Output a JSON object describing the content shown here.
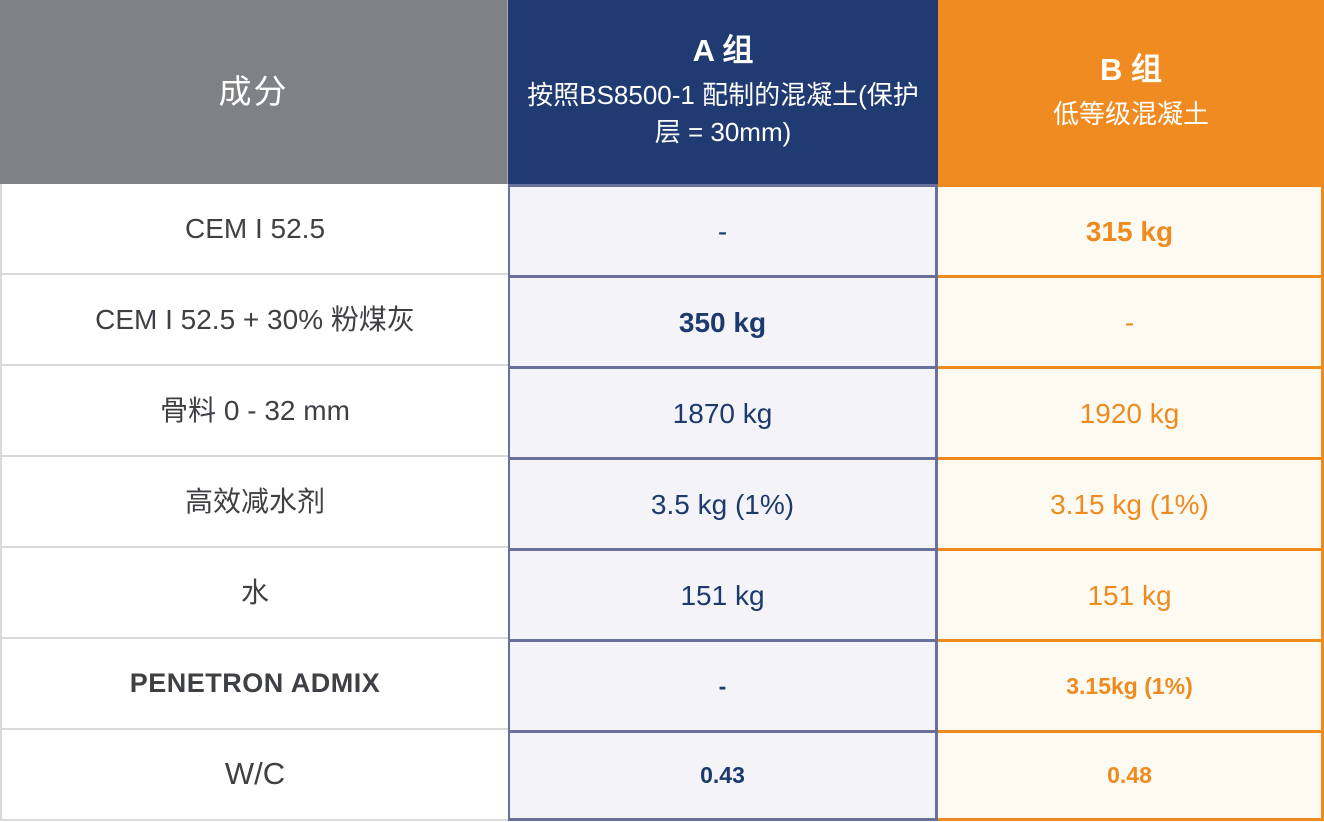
{
  "chart_data": {
    "type": "table",
    "header": {
      "ingredient_label": "成分",
      "group_a": {
        "title": "A 组",
        "subtitle": "按照BS8500-1 配制的混凝土(保护层 = 30mm)"
      },
      "group_b": {
        "title": "B 组",
        "subtitle": "低等级混凝土"
      }
    },
    "rows": [
      {
        "ingredient": "CEM I 52.5",
        "group_a": "-",
        "group_b": "315 kg"
      },
      {
        "ingredient": "CEM I 52.5 + 30% 粉煤灰",
        "group_a": "350 kg",
        "group_b": "-"
      },
      {
        "ingredient": "骨料 0 - 32 mm",
        "group_a": "1870 kg",
        "group_b": "1920 kg"
      },
      {
        "ingredient": "高效减水剂",
        "group_a": "3.5 kg (1%)",
        "group_b": "3.15 kg (1%)"
      },
      {
        "ingredient": "水",
        "group_a": "151 kg",
        "group_b": "151 kg"
      },
      {
        "ingredient": "PENETRON ADMIX",
        "group_a": "-",
        "group_b": "3.15kg (1%)"
      },
      {
        "ingredient": "W/C",
        "group_a": "0.43",
        "group_b": "0.48"
      }
    ],
    "colors": {
      "header_gray": "#808186",
      "header_navy": "#203a72",
      "header_orange": "#f08b21",
      "cell_a_background": "#f3f3f8",
      "cell_b_background": "#fdfaf2",
      "border_a": "#6b6f9c",
      "border_b": "#ef8a1e",
      "text_ingredient": "#3f4046",
      "text_a": "#1d3a6f",
      "text_b": "#ef8a1f",
      "row_divider": "#d9d9d9"
    }
  }
}
